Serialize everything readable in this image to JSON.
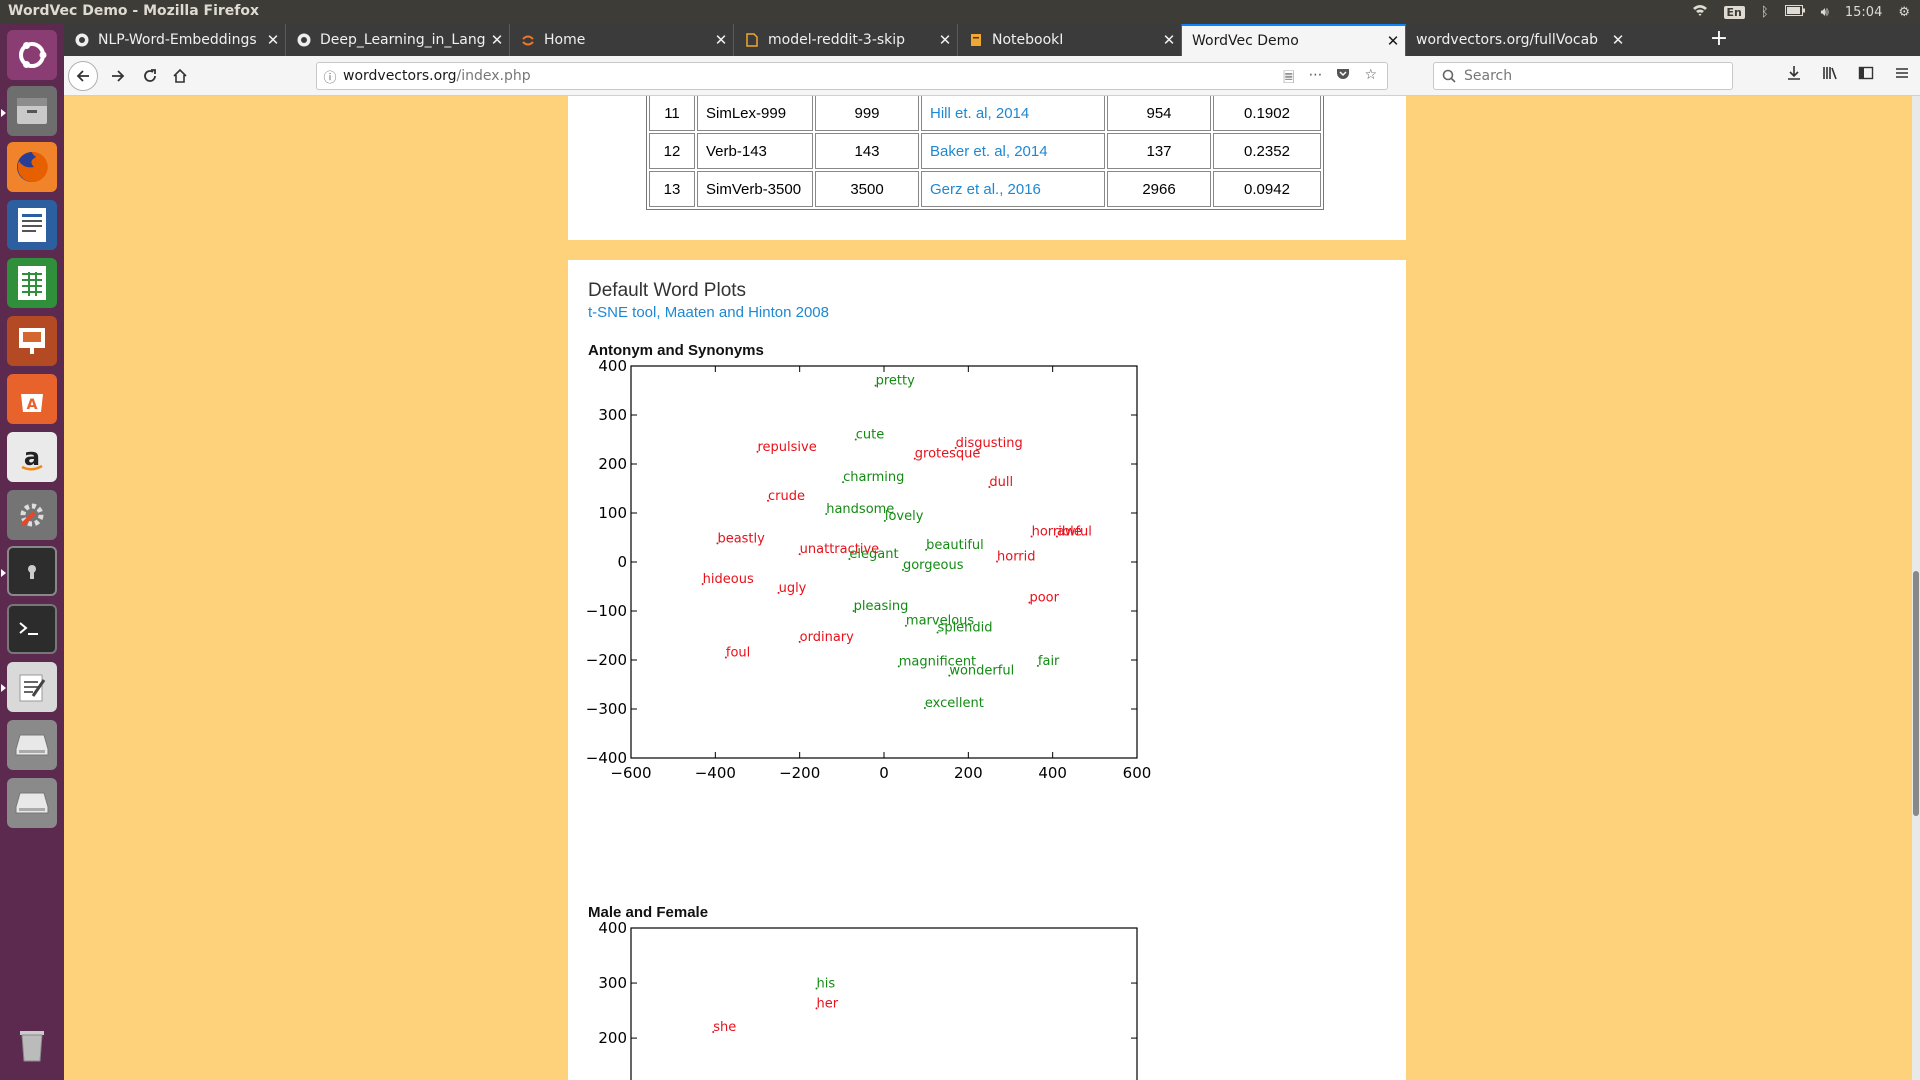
{
  "window": {
    "title": "WordVec Demo - Mozilla Firefox"
  },
  "system_tray": {
    "keyboard_layout": "En",
    "clock": "15:04"
  },
  "launcher": {
    "items": [
      "ubuntu-dash",
      "files",
      "firefox",
      "writer",
      "calc",
      "impress",
      "software-center",
      "amazon",
      "system-settings",
      "screen-lock",
      "terminal",
      "text-editor",
      "disk-1",
      "disk-2",
      "trash"
    ]
  },
  "tabs": [
    {
      "label": "NLP-Word-Embeddings",
      "icon": "github-icon"
    },
    {
      "label": "Deep_Learning_in_Lang",
      "icon": "github-icon"
    },
    {
      "label": "Home",
      "icon": "jupyter-icon"
    },
    {
      "label": "model-reddit-3-skip",
      "icon": "file-icon"
    },
    {
      "label": "NotebookI",
      "icon": "notebook-icon"
    },
    {
      "label": "WordVec Demo",
      "icon": "",
      "active": true
    },
    {
      "label": "wordvectors.org/fullVocab",
      "icon": ""
    }
  ],
  "url": {
    "host": "wordvectors.org",
    "path": "/index.php"
  },
  "search": {
    "placeholder": "Search"
  },
  "benchmark_table": {
    "rows": [
      {
        "num": "11",
        "name": "SimLex-999",
        "pairs": "999",
        "reference": "Hill et. al, 2014",
        "found": "954",
        "score": "0.1902"
      },
      {
        "num": "12",
        "name": "Verb-143",
        "pairs": "143",
        "reference": "Baker et. al, 2014",
        "found": "137",
        "score": "0.2352"
      },
      {
        "num": "13",
        "name": "SimVerb-3500",
        "pairs": "3500",
        "reference": "Gerz et al., 2016",
        "found": "2966",
        "score": "0.0942"
      }
    ]
  },
  "plots_section": {
    "title": "Default Word Plots",
    "subtitle": "t-SNE tool, Maaten and Hinton 2008"
  },
  "colors": {
    "antonym": "#e8101a",
    "synonym": "#138b13",
    "link": "#1e88d2",
    "page_bg": "#fdd27a"
  },
  "chart_data": [
    {
      "type": "scatter",
      "title": "Antonym and Synonyms",
      "xlim": [
        -600,
        600
      ],
      "ylim": [
        -400,
        400
      ],
      "x_ticks": [
        -600,
        -400,
        -200,
        0,
        200,
        400,
        600
      ],
      "y_ticks": [
        -400,
        -300,
        -200,
        -100,
        0,
        100,
        200,
        300,
        400
      ],
      "x_tick_labels": [
        "−600",
        "−400",
        "−200",
        "0",
        "200",
        "400",
        "600"
      ],
      "y_tick_labels": [
        "−400",
        "−300",
        "−200",
        "−100",
        "0",
        "100",
        "200",
        "300",
        "400"
      ],
      "grid": false,
      "series": [
        {
          "color": "#e8101a",
          "points": [
            {
              "label": "repulsive",
              "x": -300,
              "y": 225
            },
            {
              "label": "disgusting",
              "x": 170,
              "y": 233
            },
            {
              "label": "grotesque",
              "x": 73,
              "y": 211
            },
            {
              "label": "dull",
              "x": 250,
              "y": 153
            },
            {
              "label": "crude",
              "x": -275,
              "y": 125
            },
            {
              "label": "beastly",
              "x": -395,
              "y": 38
            },
            {
              "label": "horrible",
              "x": 350,
              "y": 52
            },
            {
              "label": "awful",
              "x": 410,
              "y": 52
            },
            {
              "label": "unattractive",
              "x": -200,
              "y": 16
            },
            {
              "label": "horrid",
              "x": 268,
              "y": 1
            },
            {
              "label": "hideous",
              "x": -430,
              "y": -45
            },
            {
              "label": "ugly",
              "x": -250,
              "y": -63
            },
            {
              "label": "poor",
              "x": 345,
              "y": -83
            },
            {
              "label": "ordinary",
              "x": -200,
              "y": -163
            },
            {
              "label": "foul",
              "x": -375,
              "y": -195
            }
          ]
        },
        {
          "color": "#138b13",
          "points": [
            {
              "label": "pretty",
              "x": -20,
              "y": 360
            },
            {
              "label": "cute",
              "x": -67,
              "y": 250
            },
            {
              "label": "charming",
              "x": -97,
              "y": 163
            },
            {
              "label": "handsome",
              "x": -137,
              "y": 98
            },
            {
              "label": "lovely",
              "x": 2,
              "y": 84
            },
            {
              "label": "beautiful",
              "x": 100,
              "y": 25
            },
            {
              "label": "elegant",
              "x": -82,
              "y": 6
            },
            {
              "label": "gorgeous",
              "x": 45,
              "y": -16
            },
            {
              "label": "pleasing",
              "x": -72,
              "y": -100
            },
            {
              "label": "marvelous",
              "x": 52,
              "y": -130
            },
            {
              "label": "splendid",
              "x": 127,
              "y": -144
            },
            {
              "label": "magnificent",
              "x": 35,
              "y": -213
            },
            {
              "label": "wonderful",
              "x": 155,
              "y": -232
            },
            {
              "label": "fair",
              "x": 365,
              "y": -212
            },
            {
              "label": "excellent",
              "x": 97,
              "y": -298
            }
          ]
        }
      ]
    },
    {
      "type": "scatter",
      "title": "Male and Female",
      "ylim_visible_top": 400,
      "y_ticks": [
        400,
        300,
        200
      ],
      "y_tick_labels": [
        "400",
        "300",
        "200"
      ],
      "grid": false,
      "series": [
        {
          "color": "#138b13",
          "points": [
            {
              "label": "his",
              "x": -160,
              "y": 290
            }
          ]
        },
        {
          "color": "#e8101a",
          "points": [
            {
              "label": "her",
              "x": -160,
              "y": 254
            },
            {
              "label": "she",
              "x": -405,
              "y": 211
            }
          ]
        }
      ]
    }
  ]
}
